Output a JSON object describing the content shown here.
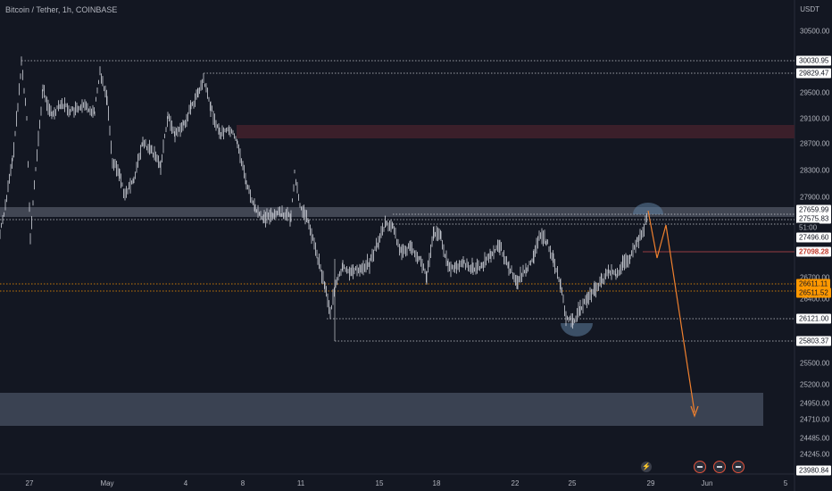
{
  "header": {
    "title": "Bitcoin / Tether, 1h, COINBASE",
    "currency": "USDT"
  },
  "y_axis": {
    "ticks": [
      "30500.00",
      "29500.00",
      "29100.00",
      "28700.00",
      "28300.00",
      "27900.00",
      "26700.00",
      "26400.00",
      "25500.00",
      "25200.00",
      "24950.00",
      "24710.00",
      "24485.00",
      "24245.00"
    ]
  },
  "price_boxes": {
    "p30030": "30030.95",
    "p29829": "29829.47",
    "p27659": "27659.99",
    "p27575": "27575.83",
    "countdown": "51:00",
    "p27496": "27496.60",
    "p27098": "27098.28",
    "p26611": "26611.11",
    "p26511": "26511.52",
    "p26121": "26121.00",
    "p25803": "25803.37",
    "p23980": "23980.84"
  },
  "x_axis": {
    "ticks": [
      "27",
      "May",
      "4",
      "8",
      "11",
      "15",
      "18",
      "22",
      "25",
      "29",
      "Jun",
      "5"
    ]
  },
  "colors": {
    "background": "#131722",
    "candles": "#d1d4dc",
    "projection": "#f0802e",
    "resistance_zone": "#3b1f2a",
    "target_zone": "#3a4252",
    "sr_zone": "#4a4f5c"
  },
  "events": {
    "flash_icon": "lightning-icon",
    "earnings_icons": [
      "event-icon",
      "event-icon",
      "event-icon"
    ]
  }
}
